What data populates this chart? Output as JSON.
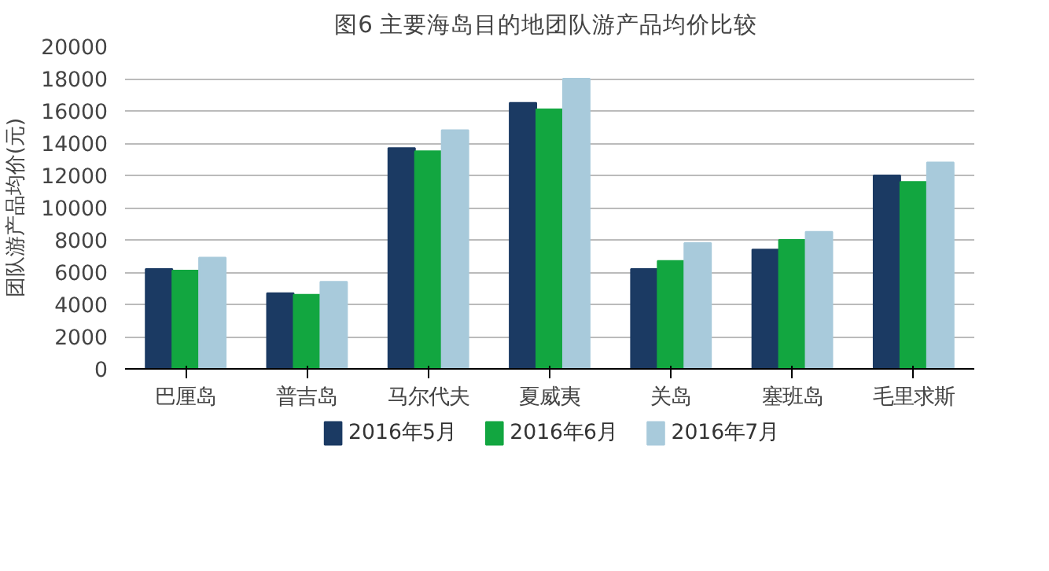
{
  "chart_data": {
    "type": "bar",
    "title": "图6  主要海岛目的地团队游产品均价比较",
    "ylabel": "团队游产品均价(元)",
    "categories": [
      "巴厘岛",
      "普吉岛",
      "马尔代夫",
      "夏威夷",
      "关岛",
      "塞班岛",
      "毛里求斯"
    ],
    "series": [
      {
        "name": "2016年5月",
        "color": "#1b3a63",
        "values": [
          6200,
          4700,
          13700,
          16500,
          6200,
          7400,
          12000
        ]
      },
      {
        "name": "2016年6月",
        "color": "#12a640",
        "values": [
          6100,
          4600,
          13500,
          16100,
          6700,
          8000,
          11600
        ]
      },
      {
        "name": "2016年7月",
        "color": "#a8cadb",
        "values": [
          6900,
          5400,
          14800,
          18000,
          7800,
          8500,
          12800
        ]
      }
    ],
    "ylim": [
      0,
      20000
    ],
    "yticks": [
      0,
      2000,
      4000,
      6000,
      8000,
      10000,
      12000,
      14000,
      16000,
      18000,
      20000
    ],
    "grid": "y",
    "legend": "bottom"
  }
}
